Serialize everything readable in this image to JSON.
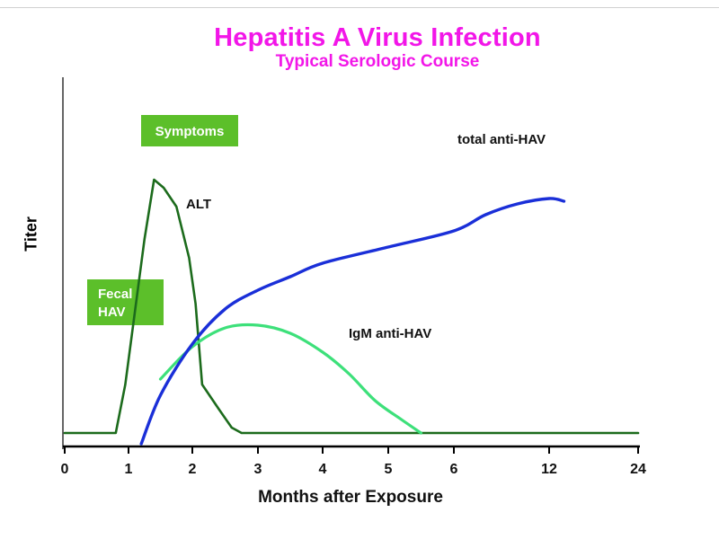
{
  "chart_data": {
    "type": "line",
    "title": "Hepatitis A Virus Infection",
    "subtitle": "Typical Serologic Course",
    "xlabel": "Months after Exposure",
    "ylabel": "Titer",
    "x_ticks": [
      "0",
      "1",
      "2",
      "3",
      "4",
      "5",
      "6",
      "12",
      "24"
    ],
    "ylim": [
      0,
      100
    ],
    "grid": false,
    "series": [
      {
        "name": "ALT",
        "color": "#1c6b1c",
        "points": [
          [
            0,
            0
          ],
          [
            0.8,
            0
          ],
          [
            0.95,
            18
          ],
          [
            1.1,
            45
          ],
          [
            1.25,
            72
          ],
          [
            1.4,
            94
          ],
          [
            1.55,
            91
          ],
          [
            1.75,
            84
          ],
          [
            1.95,
            65
          ],
          [
            2.05,
            48
          ],
          [
            2.15,
            18
          ],
          [
            2.4,
            9
          ],
          [
            2.6,
            2
          ],
          [
            2.75,
            0
          ],
          [
            6,
            0
          ],
          [
            12,
            0
          ],
          [
            24,
            0
          ]
        ]
      },
      {
        "name": "IgM anti-HAV",
        "color": "#3de07a",
        "points": [
          [
            1.5,
            20
          ],
          [
            2,
            32
          ],
          [
            2.5,
            39
          ],
          [
            3,
            40
          ],
          [
            3.5,
            37
          ],
          [
            4,
            30
          ],
          [
            4.4,
            22
          ],
          [
            4.8,
            12
          ],
          [
            5.2,
            5
          ],
          [
            5.5,
            0
          ]
        ]
      },
      {
        "name": "total anti-HAV",
        "color": "#1a2fd8",
        "points": [
          [
            1.2,
            -4
          ],
          [
            1.5,
            14
          ],
          [
            2,
            33
          ],
          [
            2.5,
            46
          ],
          [
            3,
            53
          ],
          [
            3.5,
            58
          ],
          [
            4,
            63
          ],
          [
            5,
            69
          ],
          [
            6,
            75
          ],
          [
            8,
            81
          ],
          [
            10,
            85
          ],
          [
            12,
            87
          ],
          [
            14,
            86
          ]
        ]
      }
    ],
    "labels": {
      "alt": "ALT",
      "igm": "IgM anti-HAV",
      "total": "total anti-HAV"
    },
    "boxes": {
      "symptoms": "Symptoms",
      "fecal_hav": [
        "Fecal",
        "HAV"
      ]
    },
    "box_color": "#5cbf2a"
  }
}
